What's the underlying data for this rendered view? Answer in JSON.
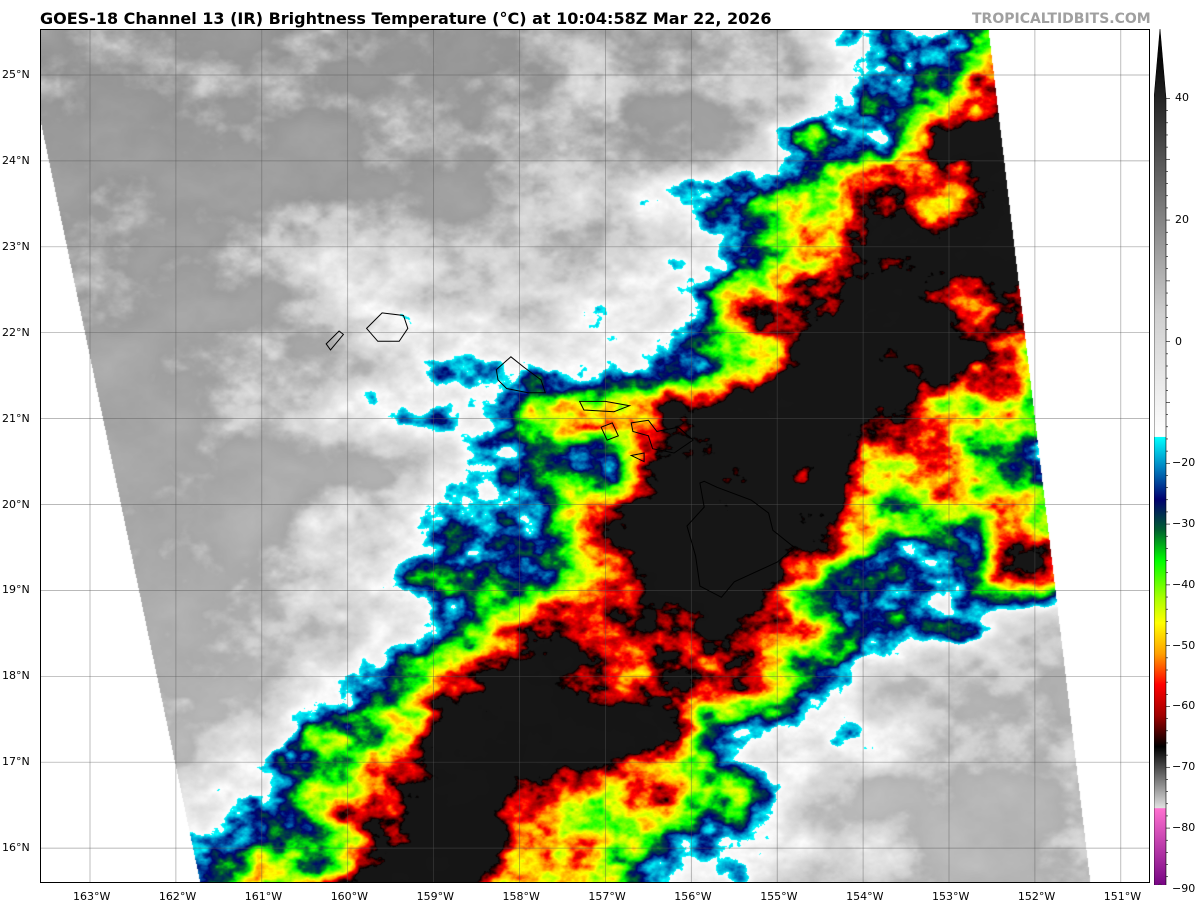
{
  "title": "GOES-18 Channel 13 (IR) Brightness Temperature (°C) at 10:04:58Z Mar 22, 2026",
  "watermark": "TROPICALTIDBITS.COM",
  "map": {
    "lon_range": [
      -163.6,
      -150.7
    ],
    "lat_range": [
      15.6,
      25.55
    ],
    "lon_ticks": [
      {
        "v": -163,
        "label": "163°W"
      },
      {
        "v": -162,
        "label": "162°W"
      },
      {
        "v": -161,
        "label": "161°W"
      },
      {
        "v": -160,
        "label": "160°W"
      },
      {
        "v": -159,
        "label": "159°W"
      },
      {
        "v": -158,
        "label": "158°W"
      },
      {
        "v": -157,
        "label": "157°W"
      },
      {
        "v": -156,
        "label": "156°W"
      },
      {
        "v": -155,
        "label": "155°W"
      },
      {
        "v": -154,
        "label": "154°W"
      },
      {
        "v": -153,
        "label": "153°W"
      },
      {
        "v": -152,
        "label": "152°W"
      },
      {
        "v": -151,
        "label": "151°W"
      }
    ],
    "lat_ticks": [
      {
        "v": 25,
        "label": "25°N"
      },
      {
        "v": 24,
        "label": "24°N"
      },
      {
        "v": 23,
        "label": "23°N"
      },
      {
        "v": 22,
        "label": "22°N"
      },
      {
        "v": 21,
        "label": "21°N"
      },
      {
        "v": 20,
        "label": "20°N"
      },
      {
        "v": 19,
        "label": "19°N"
      },
      {
        "v": 18,
        "label": "18°N"
      },
      {
        "v": 17,
        "label": "17°N"
      },
      {
        "v": 16,
        "label": "16°N"
      }
    ],
    "gridlines": true,
    "coastline_color": "#000000"
  },
  "colorbar": {
    "range": [
      -93,
      46
    ],
    "ticks": [
      {
        "v": 40,
        "label": "40"
      },
      {
        "v": 20,
        "label": "20"
      },
      {
        "v": 0,
        "label": "0"
      },
      {
        "v": -20,
        "label": "−20"
      },
      {
        "v": -30,
        "label": "−30"
      },
      {
        "v": -40,
        "label": "−40"
      },
      {
        "v": -50,
        "label": "−50"
      },
      {
        "v": -60,
        "label": "−60"
      },
      {
        "v": -70,
        "label": "−70"
      },
      {
        "v": -80,
        "label": "−80"
      },
      {
        "v": -90,
        "label": "−90"
      }
    ],
    "stops": [
      {
        "v": 46,
        "c": "#000000"
      },
      {
        "v": 40,
        "c": "#0a0a0a"
      },
      {
        "v": 0,
        "c": "#cfcfcf"
      },
      {
        "v": -19.9,
        "c": "#ffffff"
      },
      {
        "v": -20,
        "c": "#00ffff"
      },
      {
        "v": -25,
        "c": "#0080c0"
      },
      {
        "v": -30,
        "c": "#000070"
      },
      {
        "v": -35,
        "c": "#006030"
      },
      {
        "v": -40,
        "c": "#00ff00"
      },
      {
        "v": -46,
        "c": "#aaff00"
      },
      {
        "v": -50,
        "c": "#ffff00"
      },
      {
        "v": -55,
        "c": "#ffa000"
      },
      {
        "v": -60,
        "c": "#ff0000"
      },
      {
        "v": -65,
        "c": "#a00000"
      },
      {
        "v": -70,
        "c": "#000000"
      },
      {
        "v": -79.9,
        "c": "#e0e0e0"
      },
      {
        "v": -80,
        "c": "#ff70d0"
      },
      {
        "v": -93,
        "c": "#700080"
      }
    ]
  }
}
